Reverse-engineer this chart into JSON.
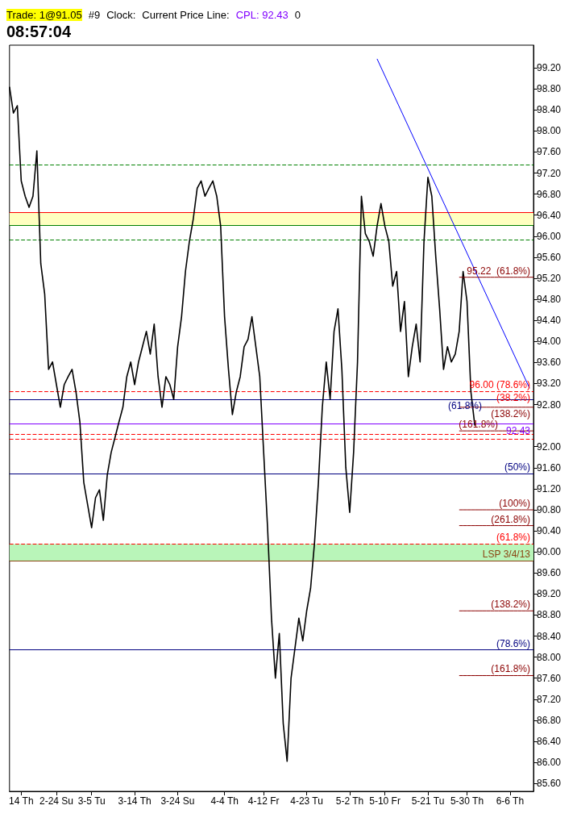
{
  "chart_data": {
    "type": "line",
    "title": "08:57:04",
    "categories": [
      null,
      null,
      null,
      "14 Th",
      null,
      null,
      null,
      null,
      null,
      null,
      null,
      null,
      "2-24 Su",
      null,
      null,
      null,
      null,
      null,
      null,
      null,
      null,
      "3-5 Tu",
      null,
      null,
      null,
      null,
      null,
      null,
      null,
      null,
      null,
      null,
      "3-14 Th",
      null,
      null,
      null,
      null,
      null,
      null,
      null,
      null,
      null,
      null,
      "3-24 Su",
      null,
      null,
      null,
      null,
      null,
      null,
      null,
      null,
      null,
      null,
      null,
      "4-4 Th",
      null,
      null,
      null,
      null,
      null,
      null,
      null,
      null,
      null,
      "4-12 Fr",
      null,
      null,
      null,
      null,
      null,
      null,
      null,
      null,
      null,
      null,
      "4-23 Tu",
      null,
      null,
      null,
      null,
      null,
      null,
      null,
      null,
      null,
      null,
      "5-2 Th",
      null,
      null,
      null,
      null,
      null,
      null,
      null,
      null,
      "5-10 Fr",
      null,
      null,
      null,
      null,
      null,
      null,
      null,
      null,
      null,
      null,
      "5-21 Tu",
      null,
      null,
      null,
      null,
      null,
      null,
      null,
      null,
      null,
      "5-30 Th",
      null,
      null,
      null,
      null,
      null,
      null,
      null,
      null,
      null,
      null,
      "6-6 Th",
      null,
      null,
      null,
      null,
      null,
      null
    ],
    "series": [
      {
        "color": "#000000",
        "values": [
          98.84,
          98.34,
          98.48,
          97.05,
          96.76,
          96.55,
          96.76,
          97.62,
          95.48,
          94.9,
          93.47,
          93.61,
          93.18,
          92.75,
          93.18,
          93.33,
          93.47,
          93.04,
          92.47,
          91.32,
          90.89,
          90.46,
          91.03,
          91.18,
          90.6,
          91.46,
          91.89,
          92.18,
          92.47,
          92.75,
          93.33,
          93.61,
          93.18,
          93.61,
          93.9,
          94.19,
          93.76,
          94.33,
          93.33,
          92.75,
          93.33,
          93.18,
          92.9,
          93.9,
          94.47,
          95.33,
          95.9,
          96.33,
          96.91,
          97.05,
          96.76,
          96.91,
          97.05,
          96.76,
          96.19,
          94.47,
          93.47,
          92.61,
          93.04,
          93.33,
          93.9,
          94.04,
          94.47,
          93.9,
          93.33,
          91.89,
          90.46,
          88.74,
          87.6,
          88.45,
          86.74,
          86.02,
          87.6,
          88.17,
          88.74,
          88.31,
          88.88,
          89.31,
          90.17,
          91.32,
          92.75,
          93.61,
          92.9,
          94.19,
          94.62,
          93.47,
          91.61,
          90.75,
          91.89,
          93.61,
          96.76,
          96.05,
          95.9,
          95.62,
          96.19,
          96.62,
          96.19,
          95.9,
          95.05,
          95.33,
          94.19,
          94.76,
          93.33,
          93.9,
          94.33,
          93.61,
          95.9,
          97.12,
          96.76,
          95.62,
          94.62,
          93.47,
          93.9,
          93.61,
          93.76,
          94.19,
          95.33,
          94.76,
          93.04,
          92.4,
          null,
          null,
          null,
          null,
          null,
          null,
          null,
          null,
          null,
          null,
          null,
          null,
          null,
          null,
          null
        ]
      },
      {
        "color": "#0000ff",
        "values": [
          null,
          null,
          null,
          null,
          null,
          null,
          null,
          null,
          null,
          null,
          null,
          null,
          null,
          null,
          null,
          null,
          null,
          null,
          null,
          null,
          null,
          null,
          null,
          null,
          null,
          null,
          null,
          null,
          null,
          null,
          null,
          null,
          null,
          null,
          null,
          null,
          null,
          null,
          null,
          null,
          null,
          null,
          null,
          null,
          null,
          null,
          null,
          null,
          null,
          null,
          null,
          null,
          null,
          null,
          null,
          null,
          null,
          null,
          null,
          null,
          null,
          null,
          null,
          null,
          null,
          null,
          null,
          null,
          null,
          null,
          null,
          null,
          null,
          null,
          null,
          null,
          null,
          null,
          null,
          null,
          null,
          null,
          null,
          null,
          null,
          null,
          null,
          null,
          null,
          null,
          null,
          null,
          null,
          null,
          99.37,
          null,
          null,
          null,
          null,
          null,
          null,
          null,
          null,
          null,
          null,
          null,
          null,
          null,
          null,
          null,
          null,
          null,
          null,
          null,
          null,
          null,
          null,
          null,
          null,
          null,
          null,
          null,
          null,
          null,
          null,
          null,
          null,
          null,
          null,
          null,
          null,
          null,
          null,
          93.11,
          null
        ]
      },
      {
        "color": "#8b0000",
        "values": [
          null,
          null,
          null,
          null,
          null,
          null,
          null,
          null,
          null,
          null,
          null,
          null,
          null,
          null,
          null,
          null,
          null,
          null,
          null,
          null,
          null,
          null,
          null,
          null,
          null,
          null,
          null,
          null,
          null,
          null,
          null,
          null,
          null,
          null,
          null,
          null,
          null,
          null,
          null,
          null,
          null,
          null,
          null,
          null,
          null,
          null,
          null,
          null,
          null,
          null,
          null,
          null,
          null,
          null,
          null,
          null,
          null,
          null,
          null,
          null,
          null,
          null,
          null,
          null,
          null,
          null,
          null,
          null,
          null,
          null,
          null,
          null,
          null,
          null,
          null,
          null,
          null,
          null,
          null,
          null,
          null,
          null,
          null,
          null,
          null,
          null,
          null,
          null,
          null,
          null,
          null,
          null,
          null,
          null,
          null,
          null,
          null,
          null,
          null,
          null,
          null,
          null,
          null,
          null,
          null,
          null,
          null,
          null,
          null,
          null,
          null,
          null,
          null,
          null,
          null,
          95.22,
          95.22,
          95.22,
          95.22,
          95.22,
          95.22,
          95.22,
          95.22,
          95.22,
          95.22,
          95.22,
          95.22,
          95.22,
          95.22,
          95.22,
          95.22,
          95.22,
          95.22,
          95.22,
          95.22
        ]
      },
      {
        "color": "#8b0000",
        "values": [
          null,
          null,
          null,
          null,
          null,
          null,
          null,
          null,
          null,
          null,
          null,
          null,
          null,
          null,
          null,
          null,
          null,
          null,
          null,
          null,
          null,
          null,
          null,
          null,
          null,
          null,
          null,
          null,
          null,
          null,
          null,
          null,
          null,
          null,
          null,
          null,
          null,
          null,
          null,
          null,
          null,
          null,
          null,
          null,
          null,
          null,
          null,
          null,
          null,
          null,
          null,
          null,
          null,
          null,
          null,
          null,
          null,
          null,
          null,
          null,
          null,
          null,
          null,
          null,
          null,
          null,
          null,
          null,
          null,
          null,
          null,
          null,
          null,
          null,
          null,
          null,
          null,
          null,
          null,
          null,
          null,
          null,
          null,
          null,
          null,
          null,
          null,
          null,
          null,
          null,
          null,
          null,
          null,
          null,
          null,
          null,
          null,
          null,
          null,
          null,
          null,
          null,
          null,
          null,
          null,
          null,
          null,
          null,
          null,
          null,
          null,
          null,
          null,
          null,
          null,
          92.75,
          92.75,
          92.75,
          92.75,
          92.75,
          92.75,
          92.75,
          92.75,
          92.75,
          92.75,
          92.75,
          92.75,
          92.75,
          92.75,
          92.75,
          92.75,
          92.75,
          92.75,
          92.75,
          92.75
        ]
      },
      {
        "color": "#8b0000",
        "values": [
          null,
          null,
          null,
          null,
          null,
          null,
          null,
          null,
          null,
          null,
          null,
          null,
          null,
          null,
          null,
          null,
          null,
          null,
          null,
          null,
          null,
          null,
          null,
          null,
          null,
          null,
          null,
          null,
          null,
          null,
          null,
          null,
          null,
          null,
          null,
          null,
          null,
          null,
          null,
          null,
          null,
          null,
          null,
          null,
          null,
          null,
          null,
          null,
          null,
          null,
          null,
          null,
          null,
          null,
          null,
          null,
          null,
          null,
          null,
          null,
          null,
          null,
          null,
          null,
          null,
          null,
          null,
          null,
          null,
          null,
          null,
          null,
          null,
          null,
          null,
          null,
          null,
          null,
          null,
          null,
          null,
          null,
          null,
          null,
          null,
          null,
          null,
          null,
          null,
          null,
          null,
          null,
          null,
          null,
          null,
          null,
          null,
          null,
          null,
          null,
          null,
          null,
          null,
          null,
          null,
          null,
          null,
          null,
          null,
          null,
          null,
          null,
          null,
          null,
          null,
          92.3,
          92.3,
          92.3,
          92.3,
          92.3,
          92.3,
          92.3,
          92.3,
          92.3,
          92.3,
          92.3,
          92.3,
          92.3,
          92.3,
          92.3,
          92.3,
          92.3,
          92.3,
          92.3,
          92.3
        ]
      },
      {
        "color": "#8b0000",
        "values": [
          null,
          null,
          null,
          null,
          null,
          null,
          null,
          null,
          null,
          null,
          null,
          null,
          null,
          null,
          null,
          null,
          null,
          null,
          null,
          null,
          null,
          null,
          null,
          null,
          null,
          null,
          null,
          null,
          null,
          null,
          null,
          null,
          null,
          null,
          null,
          null,
          null,
          null,
          null,
          null,
          null,
          null,
          null,
          null,
          null,
          null,
          null,
          null,
          null,
          null,
          null,
          null,
          null,
          null,
          null,
          null,
          null,
          null,
          null,
          null,
          null,
          null,
          null,
          null,
          null,
          null,
          null,
          null,
          null,
          null,
          null,
          null,
          null,
          null,
          null,
          null,
          null,
          null,
          null,
          null,
          null,
          null,
          null,
          null,
          null,
          null,
          null,
          null,
          null,
          null,
          null,
          null,
          null,
          null,
          null,
          null,
          null,
          null,
          null,
          null,
          null,
          null,
          null,
          null,
          null,
          null,
          null,
          null,
          null,
          null,
          null,
          null,
          null,
          null,
          null,
          90.8,
          90.8,
          90.8,
          90.8,
          90.8,
          90.8,
          90.8,
          90.8,
          90.8,
          90.8,
          90.8,
          90.8,
          90.8,
          90.8,
          90.8,
          90.8,
          90.8,
          90.8,
          90.8,
          90.8
        ]
      },
      {
        "color": "#8b0000",
        "values": [
          null,
          null,
          null,
          null,
          null,
          null,
          null,
          null,
          null,
          null,
          null,
          null,
          null,
          null,
          null,
          null,
          null,
          null,
          null,
          null,
          null,
          null,
          null,
          null,
          null,
          null,
          null,
          null,
          null,
          null,
          null,
          null,
          null,
          null,
          null,
          null,
          null,
          null,
          null,
          null,
          null,
          null,
          null,
          null,
          null,
          null,
          null,
          null,
          null,
          null,
          null,
          null,
          null,
          null,
          null,
          null,
          null,
          null,
          null,
          null,
          null,
          null,
          null,
          null,
          null,
          null,
          null,
          null,
          null,
          null,
          null,
          null,
          null,
          null,
          null,
          null,
          null,
          null,
          null,
          null,
          null,
          null,
          null,
          null,
          null,
          null,
          null,
          null,
          null,
          null,
          null,
          null,
          null,
          null,
          null,
          null,
          null,
          null,
          null,
          null,
          null,
          null,
          null,
          null,
          null,
          null,
          null,
          null,
          null,
          null,
          null,
          null,
          null,
          null,
          null,
          90.5,
          90.5,
          90.5,
          90.5,
          90.5,
          90.5,
          90.5,
          90.5,
          90.5,
          90.5,
          90.5,
          90.5,
          90.5,
          90.5,
          90.5,
          90.5,
          90.5,
          90.5,
          90.5,
          90.5
        ]
      },
      {
        "color": "#8b0000",
        "values": [
          null,
          null,
          null,
          null,
          null,
          null,
          null,
          null,
          null,
          null,
          null,
          null,
          null,
          null,
          null,
          null,
          null,
          null,
          null,
          null,
          null,
          null,
          null,
          null,
          null,
          null,
          null,
          null,
          null,
          null,
          null,
          null,
          null,
          null,
          null,
          null,
          null,
          null,
          null,
          null,
          null,
          null,
          null,
          null,
          null,
          null,
          null,
          null,
          null,
          null,
          null,
          null,
          null,
          null,
          null,
          null,
          null,
          null,
          null,
          null,
          null,
          null,
          null,
          null,
          null,
          null,
          null,
          null,
          null,
          null,
          null,
          null,
          null,
          null,
          null,
          null,
          null,
          null,
          null,
          null,
          null,
          null,
          null,
          null,
          null,
          null,
          null,
          null,
          null,
          null,
          null,
          null,
          null,
          null,
          null,
          null,
          null,
          null,
          null,
          null,
          null,
          null,
          null,
          null,
          null,
          null,
          null,
          null,
          null,
          null,
          null,
          null,
          null,
          null,
          null,
          88.88,
          88.88,
          88.88,
          88.88,
          88.88,
          88.88,
          88.88,
          88.88,
          88.88,
          88.88,
          88.88,
          88.88,
          88.88,
          88.88,
          88.88,
          88.88,
          88.88,
          88.88,
          88.88,
          88.88
        ]
      },
      {
        "color": "#8b0000",
        "values": [
          null,
          null,
          null,
          null,
          null,
          null,
          null,
          null,
          null,
          null,
          null,
          null,
          null,
          null,
          null,
          null,
          null,
          null,
          null,
          null,
          null,
          null,
          null,
          null,
          null,
          null,
          null,
          null,
          null,
          null,
          null,
          null,
          null,
          null,
          null,
          null,
          null,
          null,
          null,
          null,
          null,
          null,
          null,
          null,
          null,
          null,
          null,
          null,
          null,
          null,
          null,
          null,
          null,
          null,
          null,
          null,
          null,
          null,
          null,
          null,
          null,
          null,
          null,
          null,
          null,
          null,
          null,
          null,
          null,
          null,
          null,
          null,
          null,
          null,
          null,
          null,
          null,
          null,
          null,
          null,
          null,
          null,
          null,
          null,
          null,
          null,
          null,
          null,
          null,
          null,
          null,
          null,
          null,
          null,
          null,
          null,
          null,
          null,
          null,
          null,
          null,
          null,
          null,
          null,
          null,
          null,
          null,
          null,
          null,
          null,
          null,
          null,
          null,
          null,
          null,
          87.65,
          87.65,
          87.65,
          87.65,
          87.65,
          87.65,
          87.65,
          87.65,
          87.65,
          87.65,
          87.65,
          87.65,
          87.65,
          87.65,
          87.65,
          87.65,
          87.65,
          87.65,
          87.65,
          87.65
        ]
      }
    ],
    "ylim": [
      85.45,
      99.63
    ],
    "yticks": [
      {
        "value": 85.6,
        "label": "85.60"
      },
      {
        "value": 86,
        "label": "86.00"
      },
      {
        "value": 86.4,
        "label": "86.40"
      },
      {
        "value": 86.8,
        "label": "86.80"
      },
      {
        "value": 87.2,
        "label": "87.20"
      },
      {
        "value": 87.6,
        "label": "87.60"
      },
      {
        "value": 88,
        "label": "88.00"
      },
      {
        "value": 88.4,
        "label": "88.40"
      },
      {
        "value": 88.8,
        "label": "88.80"
      },
      {
        "value": 89.2,
        "label": "89.20"
      },
      {
        "value": 89.6,
        "label": "89.60"
      },
      {
        "value": 90,
        "label": "90.00"
      },
      {
        "value": 90.4,
        "label": "90.40"
      },
      {
        "value": 90.8,
        "label": "90.80"
      },
      {
        "value": 91.2,
        "label": "91.20"
      },
      {
        "value": 91.6,
        "label": "91.60"
      },
      {
        "value": 92,
        "label": "92.00"
      },
      {
        "value": 92.8,
        "label": "92.80"
      },
      {
        "value": 93.2,
        "label": "93.20"
      },
      {
        "value": 93.6,
        "label": "93.60"
      },
      {
        "value": 94,
        "label": "94.00"
      },
      {
        "value": 94.4,
        "label": "94.40"
      },
      {
        "value": 94.8,
        "label": "94.80"
      },
      {
        "value": 95.2,
        "label": "95.20"
      },
      {
        "value": 95.6,
        "label": "95.60"
      },
      {
        "value": 96,
        "label": "96.00"
      },
      {
        "value": 96.4,
        "label": "96.40"
      },
      {
        "value": 96.8,
        "label": "96.80"
      },
      {
        "value": 97.2,
        "label": "97.20"
      },
      {
        "value": 97.6,
        "label": "97.60"
      },
      {
        "value": 98,
        "label": "98.00"
      },
      {
        "value": 98.4,
        "label": "98.40"
      },
      {
        "value": 98.8,
        "label": "98.80"
      },
      {
        "value": 99.2,
        "label": "99.20"
      }
    ],
    "grid": false,
    "marker": "none",
    "bands": [
      {
        "axis": "y",
        "from": 96.21,
        "to": 96.45,
        "color": "#ffffc0"
      },
      {
        "axis": "y",
        "from": 89.83,
        "to": 90.15,
        "color": "#b9f5b9"
      }
    ],
    "ref_lines": [
      {
        "axis": "y",
        "value": 97.35,
        "color": "#008000",
        "line_style": "dashed"
      },
      {
        "axis": "y",
        "value": 96.45,
        "color": "#ff0000",
        "line_style": "solid"
      },
      {
        "axis": "y",
        "value": 96.21,
        "color": "#008000",
        "line_style": "solid"
      },
      {
        "axis": "y",
        "value": 95.93,
        "color": "#008000",
        "line_style": "dashed"
      },
      {
        "axis": "y",
        "value": 93.05,
        "color": "#ff0000",
        "line_style": "dashed"
      },
      {
        "axis": "y",
        "value": 92.9,
        "color": "#000080",
        "line_style": "solid"
      },
      {
        "axis": "y",
        "value": 92.43,
        "color": "#8000ff",
        "line_style": "solid"
      },
      {
        "axis": "y",
        "value": 92.24,
        "color": "#ff0000",
        "line_style": "dashed"
      },
      {
        "axis": "y",
        "value": 92.15,
        "color": "#ff0000",
        "line_style": "dashed"
      },
      {
        "axis": "y",
        "value": 91.49,
        "color": "#000080",
        "line_style": "solid"
      },
      {
        "axis": "y",
        "value": 90.15,
        "color": "#ff0000",
        "line_style": "dashed"
      },
      {
        "axis": "y",
        "value": 89.83,
        "color": "#8b4513",
        "line_style": "solid"
      },
      {
        "axis": "y",
        "value": 88.14,
        "color": "#000080",
        "line_style": "solid"
      }
    ],
    "annotations": [
      "Trade: 1@91.05",
      "#9",
      "Clock:",
      "Current Price Line:",
      "CPL: 92.43",
      "0",
      {
        "text": "95.22  (61.8%)",
        "y": 95.22
      },
      {
        "text": "96.00 (78.6%)",
        "y": 93.05
      },
      {
        "text": "(38.2%)",
        "y": 93.05
      },
      {
        "text": "(61.8%)",
        "y": 92.9
      },
      {
        "text": "(138.2%)",
        "y": 92.75
      },
      {
        "text": "92.43",
        "y": 92.43
      },
      {
        "text": "(161.8%)",
        "y": 92.3
      },
      {
        "text": "(50%)",
        "y": 91.49
      },
      {
        "text": "(100%)",
        "y": 90.8
      },
      {
        "text": "(261.8%)",
        "y": 90.5
      },
      {
        "text": "(61.8%)",
        "y": 90.15
      },
      {
        "text": "LSP 3/4/13",
        "y": 89.83
      },
      {
        "text": "(138.2%)",
        "y": 88.88
      },
      {
        "text": "(78.6%)",
        "y": 88.14
      },
      {
        "text": "(161.8%)",
        "y": 87.65
      }
    ]
  }
}
